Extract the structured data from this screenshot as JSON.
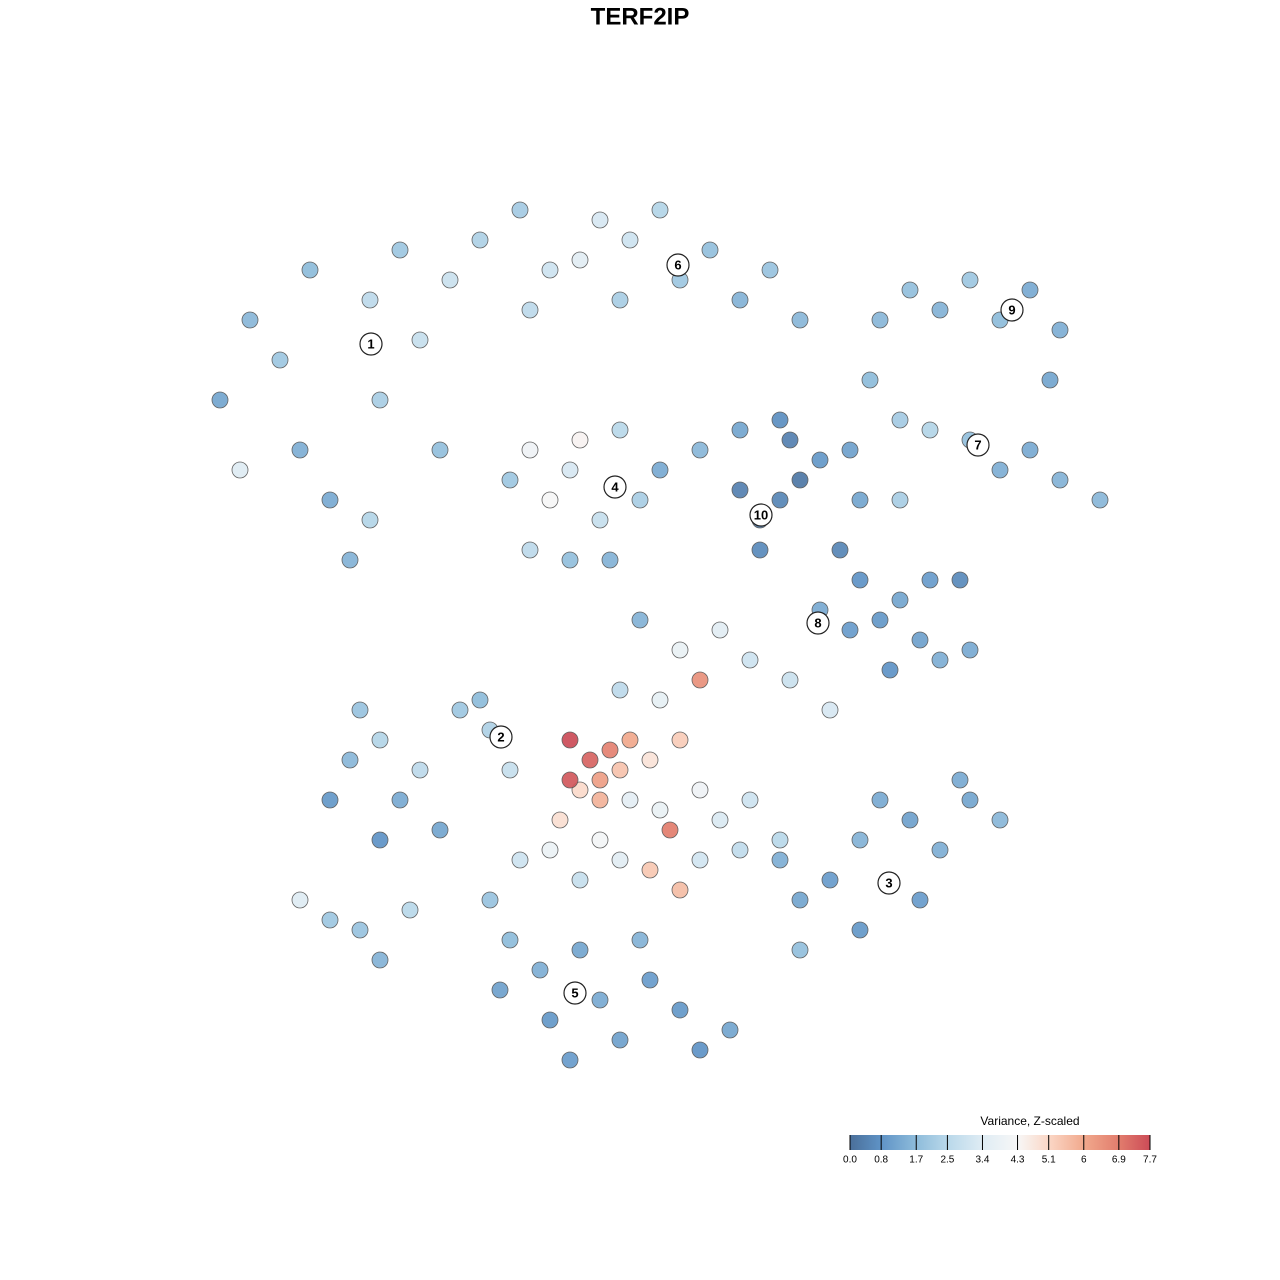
{
  "chart_data": {
    "type": "scatter",
    "title": "TERF2IP",
    "xlim": [
      0,
      128
    ],
    "ylim": [
      128,
      0
    ],
    "series": [
      {
        "x": [
          22,
          25,
          28,
          30,
          33,
          35,
          37,
          38,
          40,
          42,
          44,
          37,
          31,
          45,
          24,
          48,
          52,
          55,
          58,
          60,
          63,
          66,
          68,
          71,
          74,
          77,
          80,
          53,
          62,
          88,
          91,
          94,
          97,
          100,
          103,
          106,
          105,
          87,
          90,
          93,
          97,
          100,
          103,
          106,
          110,
          85,
          51,
          53,
          55,
          57,
          58,
          60,
          62,
          64,
          53,
          57,
          61,
          66,
          70,
          74,
          78,
          82,
          86,
          90,
          74,
          76,
          78,
          76,
          80,
          79,
          84,
          86,
          82,
          85,
          88,
          90,
          92,
          94,
          97,
          89,
          93,
          96,
          33,
          35,
          38,
          40,
          42,
          44,
          46,
          49,
          51,
          38,
          48,
          36,
          30,
          33,
          36,
          38,
          41,
          68,
          72,
          75,
          62,
          66,
          79,
          83,
          70,
          64,
          57,
          59,
          61,
          62,
          63,
          58,
          60,
          57,
          65,
          68,
          67,
          65,
          68,
          56,
          60,
          55,
          60,
          63,
          66,
          70,
          72,
          75,
          74,
          58,
          62,
          70,
          78,
          52,
          78,
          80,
          83,
          86,
          88,
          91,
          94,
          97,
          100,
          92,
          86,
          80,
          96,
          49,
          51,
          50,
          54,
          55,
          58,
          60,
          62,
          65,
          68,
          70,
          73,
          64,
          57
        ],
        "y": [
          40,
          32,
          36,
          45,
          50,
          56,
          30,
          40,
          25,
          34,
          45,
          52,
          27,
          28,
          47,
          24,
          21,
          27,
          26,
          22,
          24,
          21,
          28,
          25,
          30,
          27,
          32,
          31,
          30,
          32,
          29,
          31,
          28,
          32,
          29,
          33,
          38,
          38,
          42,
          43,
          44,
          47,
          45,
          48,
          50,
          45,
          48,
          45,
          50,
          47,
          44,
          52,
          43,
          50,
          55,
          56,
          56,
          47,
          45,
          43,
          42,
          46,
          50,
          50,
          49,
          52,
          50,
          55,
          48,
          44,
          55,
          58,
          61,
          63,
          62,
          60,
          64,
          66,
          65,
          67,
          58,
          58,
          80,
          76,
          74,
          80,
          77,
          83,
          71,
          73,
          77,
          84,
          70,
          71,
          90,
          92,
          93,
          96,
          91,
          65,
          63,
          66,
          69,
          70,
          68,
          71,
          68,
          62,
          74,
          76,
          75,
          77,
          74,
          79,
          80,
          78,
          76,
          74,
          83,
          87,
          89,
          82,
          78,
          85,
          84,
          80,
          81,
          79,
          82,
          80,
          85,
          88,
          86,
          86,
          84,
          86,
          86,
          90,
          88,
          84,
          80,
          82,
          85,
          80,
          82,
          90,
          93,
          95,
          78,
          90,
          94,
          99,
          97,
          102,
          95,
          100,
          104,
          98,
          101,
          105,
          103,
          94,
          106
        ],
        "values": [
          1.2,
          1.6,
          2.0,
          1.4,
          1.3,
          1.5,
          2.6,
          2.2,
          2.0,
          2.8,
          1.8,
          2.4,
          1.7,
          2.9,
          3.4,
          2.3,
          2.1,
          3.0,
          3.5,
          3.2,
          3.0,
          2.4,
          2.0,
          1.8,
          1.5,
          1.9,
          1.6,
          2.6,
          2.2,
          1.6,
          1.8,
          1.5,
          2.0,
          1.7,
          1.3,
          1.4,
          1.2,
          1.7,
          2.1,
          2.4,
          1.8,
          1.4,
          1.3,
          1.5,
          1.6,
          1.1,
          2.0,
          4.0,
          4.3,
          3.2,
          4.4,
          2.8,
          2.5,
          2.2,
          2.6,
          1.8,
          1.5,
          1.3,
          1.6,
          1.2,
          0.7,
          0.9,
          1.2,
          2.2,
          0.4,
          0.3,
          0.5,
          0.6,
          0.2,
          0.4,
          0.5,
          0.8,
          1.3,
          1.0,
          0.9,
          1.2,
          1.1,
          1.4,
          1.3,
          0.8,
          1.0,
          0.6,
          0.9,
          1.6,
          2.4,
          1.3,
          2.6,
          1.2,
          2.0,
          2.3,
          2.8,
          0.8,
          1.7,
          1.9,
          3.4,
          2.0,
          1.9,
          1.5,
          2.5,
          3.8,
          3.5,
          3.0,
          2.6,
          3.7,
          2.9,
          3.2,
          6.5,
          1.5,
          7.7,
          7.3,
          6.8,
          5.5,
          6.0,
          5.0,
          5.8,
          7.5,
          4.8,
          5.3,
          6.9,
          5.4,
          5.6,
          4.9,
          6.2,
          3.9,
          4.2,
          3.6,
          3.8,
          4.0,
          3.3,
          3.0,
          2.7,
          2.8,
          3.5,
          3.1,
          2.5,
          3.0,
          1.4,
          1.2,
          1.0,
          1.5,
          1.3,
          1.1,
          1.4,
          1.2,
          1.6,
          1.0,
          0.9,
          1.8,
          1.3,
          1.9,
          1.7,
          1.1,
          1.4,
          0.9,
          1.2,
          1.3,
          1.1,
          1.0,
          0.9,
          0.8,
          1.2,
          1.5,
          1.0
        ]
      }
    ],
    "clusters": [
      {
        "label": "1",
        "x": 37.1,
        "y": 34.4
      },
      {
        "label": "2",
        "x": 50.1,
        "y": 73.7
      },
      {
        "label": "3",
        "x": 88.9,
        "y": 88.3
      },
      {
        "label": "4",
        "x": 61.5,
        "y": 48.7
      },
      {
        "label": "5",
        "x": 57.5,
        "y": 99.3
      },
      {
        "label": "6",
        "x": 67.8,
        "y": 26.5
      },
      {
        "label": "7",
        "x": 97.8,
        "y": 44.5
      },
      {
        "label": "8",
        "x": 81.8,
        "y": 62.3
      },
      {
        "label": "9",
        "x": 101.2,
        "y": 31.0
      },
      {
        "label": "10",
        "x": 76.1,
        "y": 51.5
      }
    ],
    "colorbar": {
      "title": "Variance, Z-scaled",
      "clim": [
        0,
        7.7
      ],
      "ticks": [
        {
          "value": 0,
          "label": "0.0"
        },
        0.8,
        1.7,
        2.5,
        3.4,
        4.3,
        5.1,
        6.0,
        6.9,
        7.7
      ],
      "colors": [
        "#4a6f9a",
        "#5f93c6",
        "#8ebcdb",
        "#b9d8ea",
        "#dfecf4",
        "#f7f7f7",
        "#fbd7c6",
        "#f1a98d",
        "#e27d6d",
        "#cc4b57"
      ]
    }
  }
}
